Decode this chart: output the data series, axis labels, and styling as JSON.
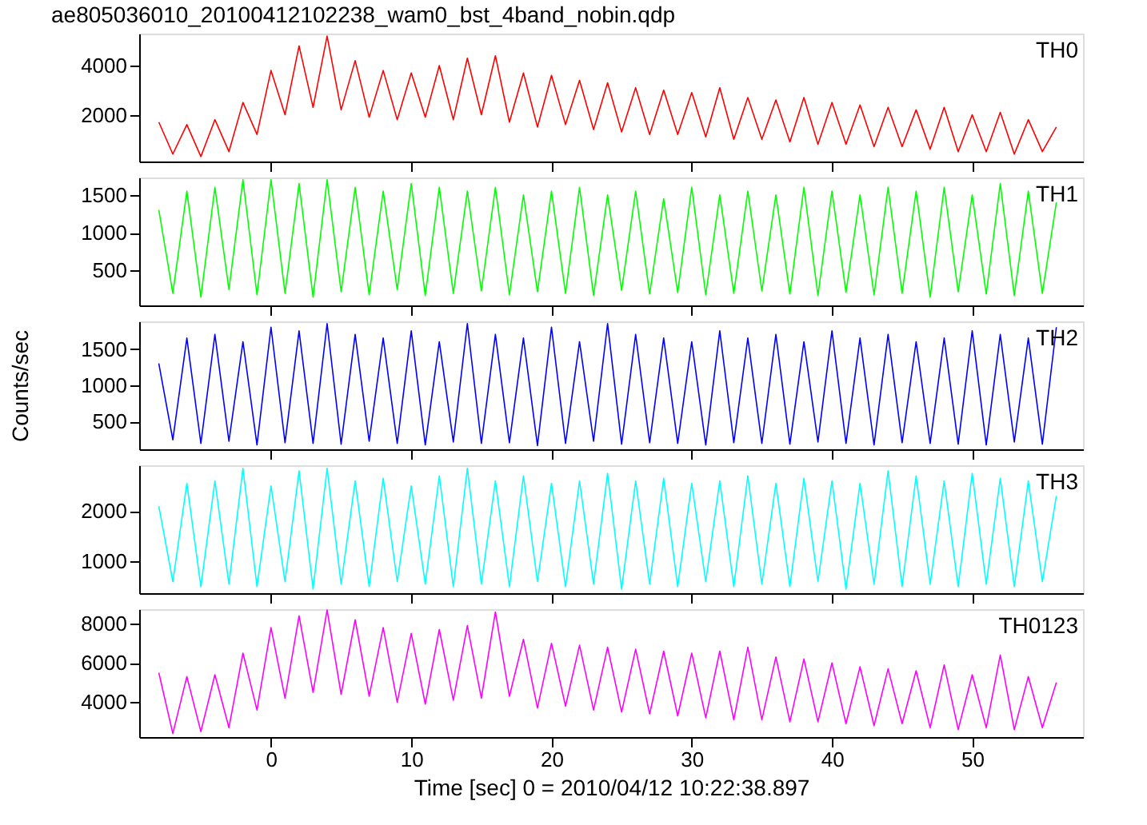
{
  "chart_data": [
    {
      "type": "line",
      "title": "ae805036010_20100412102238_wam0_bst_4band_nobin.qdp",
      "tick_labels": "y",
      "grid": false,
      "xlim": [
        -9.4,
        57.9
      ],
      "xticks": [
        0,
        10,
        20,
        30,
        40,
        50
      ],
      "ylim": [
        100,
        5300
      ],
      "yticks": [
        2000,
        4000
      ],
      "x": [
        -8,
        -7,
        -6,
        -5,
        -4,
        -3,
        -2,
        -1,
        0,
        1,
        2,
        3,
        4,
        5,
        6,
        7,
        8,
        9,
        10,
        11,
        12,
        13,
        14,
        15,
        16,
        17,
        18,
        19,
        20,
        21,
        22,
        23,
        24,
        25,
        26,
        27,
        28,
        29,
        30,
        31,
        32,
        33,
        34,
        35,
        36,
        37,
        38,
        39,
        40,
        41,
        42,
        43,
        44,
        45,
        46,
        47,
        48,
        49,
        50,
        51,
        52,
        53,
        54,
        55,
        56
      ],
      "series": [
        {
          "name": "TH0",
          "color": "#ff0000",
          "values": [
            1700,
            400,
            1600,
            300,
            1800,
            500,
            2500,
            1200,
            3800,
            2000,
            4800,
            2300,
            5200,
            2200,
            4200,
            1900,
            3800,
            1800,
            3700,
            1900,
            4000,
            1800,
            4300,
            2000,
            4400,
            1700,
            3700,
            1500,
            3600,
            1600,
            3400,
            1400,
            3300,
            1300,
            3100,
            1200,
            3000,
            1200,
            2900,
            1100,
            3100,
            1000,
            2700,
            1000,
            2600,
            900,
            2700,
            800,
            2500,
            800,
            2400,
            700,
            2300,
            700,
            2200,
            600,
            2300,
            500,
            2000,
            500,
            2100,
            400,
            1800,
            500,
            1500
          ]
        }
      ]
    },
    {
      "type": "line",
      "tick_labels": "y",
      "grid": false,
      "xlim": [
        -9.4,
        57.9
      ],
      "xticks": [
        0,
        10,
        20,
        30,
        40,
        50
      ],
      "ylim": [
        40,
        1730
      ],
      "yticks": [
        500,
        1000,
        1500
      ],
      "x": [
        -8,
        -7,
        -6,
        -5,
        -4,
        -3,
        -2,
        -1,
        0,
        1,
        2,
        3,
        4,
        5,
        6,
        7,
        8,
        9,
        10,
        11,
        12,
        13,
        14,
        15,
        16,
        17,
        18,
        19,
        20,
        21,
        22,
        23,
        24,
        25,
        26,
        27,
        28,
        29,
        30,
        31,
        32,
        33,
        34,
        35,
        36,
        37,
        38,
        39,
        40,
        41,
        42,
        43,
        44,
        45,
        46,
        47,
        48,
        49,
        50,
        51,
        52,
        53,
        54,
        55,
        56
      ],
      "series": [
        {
          "name": "TH1",
          "color": "#00ff00",
          "values": [
            1300,
            200,
            1550,
            150,
            1600,
            250,
            1700,
            180,
            1700,
            200,
            1650,
            150,
            1700,
            220,
            1600,
            180,
            1550,
            250,
            1650,
            170,
            1600,
            200,
            1550,
            230,
            1600,
            180,
            1500,
            220,
            1550,
            200,
            1600,
            170,
            1500,
            240,
            1550,
            190,
            1450,
            210,
            1600,
            180,
            1500,
            200,
            1550,
            230,
            1500,
            190,
            1600,
            170,
            1550,
            210,
            1500,
            180,
            1600,
            200,
            1550,
            150,
            1600,
            220,
            1500,
            190,
            1650,
            170,
            1550,
            200,
            1400
          ]
        }
      ]
    },
    {
      "type": "line",
      "tick_labels": "y",
      "grid": false,
      "xlim": [
        -9.4,
        57.9
      ],
      "xticks": [
        0,
        10,
        20,
        30,
        40,
        50
      ],
      "ylim": [
        120,
        1880
      ],
      "yticks": [
        500,
        1000,
        1500
      ],
      "ylabel": "Counts/sec",
      "x": [
        -8,
        -7,
        -6,
        -5,
        -4,
        -3,
        -2,
        -1,
        0,
        1,
        2,
        3,
        4,
        5,
        6,
        7,
        8,
        9,
        10,
        11,
        12,
        13,
        14,
        15,
        16,
        17,
        18,
        19,
        20,
        21,
        22,
        23,
        24,
        25,
        26,
        27,
        28,
        29,
        30,
        31,
        32,
        33,
        34,
        35,
        36,
        37,
        38,
        39,
        40,
        41,
        42,
        43,
        44,
        45,
        46,
        47,
        48,
        49,
        50,
        51,
        52,
        53,
        54,
        55,
        56
      ],
      "series": [
        {
          "name": "TH2",
          "color": "#0000ff",
          "values": [
            1300,
            250,
            1650,
            200,
            1700,
            230,
            1600,
            180,
            1800,
            210,
            1750,
            200,
            1850,
            190,
            1700,
            230,
            1650,
            200,
            1750,
            180,
            1600,
            220,
            1850,
            200,
            1700,
            210,
            1650,
            170,
            1800,
            200,
            1600,
            230,
            1850,
            190,
            1700,
            210,
            1650,
            200,
            1600,
            180,
            1750,
            210,
            1650,
            200,
            1700,
            190,
            1600,
            220,
            1750,
            200,
            1650,
            180,
            1700,
            210,
            1600,
            200,
            1650,
            190,
            1750,
            180,
            1700,
            220,
            1650,
            190,
            1800
          ]
        }
      ]
    },
    {
      "type": "line",
      "tick_labels": "y",
      "grid": false,
      "xlim": [
        -9.4,
        57.9
      ],
      "xticks": [
        0,
        10,
        20,
        30,
        40,
        50
      ],
      "ylim": [
        370,
        2910
      ],
      "yticks": [
        1000,
        2000
      ],
      "x": [
        -8,
        -7,
        -6,
        -5,
        -4,
        -3,
        -2,
        -1,
        0,
        1,
        2,
        3,
        4,
        5,
        6,
        7,
        8,
        9,
        10,
        11,
        12,
        13,
        14,
        15,
        16,
        17,
        18,
        19,
        20,
        21,
        22,
        23,
        24,
        25,
        26,
        27,
        28,
        29,
        30,
        31,
        32,
        33,
        34,
        35,
        36,
        37,
        38,
        39,
        40,
        41,
        42,
        43,
        44,
        45,
        46,
        47,
        48,
        49,
        50,
        51,
        52,
        53,
        54,
        55,
        56
      ],
      "series": [
        {
          "name": "TH3",
          "color": "#00ffff",
          "values": [
            2100,
            600,
            2550,
            500,
            2600,
            550,
            2850,
            500,
            2500,
            600,
            2800,
            450,
            2850,
            550,
            2600,
            500,
            2650,
            600,
            2500,
            550,
            2700,
            500,
            2850,
            550,
            2600,
            500,
            2700,
            600,
            2550,
            500,
            2600,
            550,
            2750,
            450,
            2600,
            550,
            2650,
            500,
            2550,
            600,
            2600,
            500,
            2700,
            550,
            2550,
            500,
            2650,
            600,
            2600,
            450,
            2550,
            550,
            2800,
            500,
            2700,
            550,
            2600,
            500,
            2750,
            550,
            2650,
            500,
            2600,
            600,
            2300
          ]
        }
      ]
    },
    {
      "type": "line",
      "tick_labels": true,
      "grid": false,
      "xlim": [
        -9.4,
        57.9
      ],
      "xticks": [
        0,
        10,
        20,
        30,
        40,
        50
      ],
      "ylim": [
        2220,
        8740
      ],
      "yticks": [
        4000,
        6000,
        8000
      ],
      "xlabel": "Time [sec] 0 = 2010/04/12 10:22:38.897",
      "x": [
        -8,
        -7,
        -6,
        -5,
        -4,
        -3,
        -2,
        -1,
        0,
        1,
        2,
        3,
        4,
        5,
        6,
        7,
        8,
        9,
        10,
        11,
        12,
        13,
        14,
        15,
        16,
        17,
        18,
        19,
        20,
        21,
        22,
        23,
        24,
        25,
        26,
        27,
        28,
        29,
        30,
        31,
        32,
        33,
        34,
        35,
        36,
        37,
        38,
        39,
        40,
        41,
        42,
        43,
        44,
        45,
        46,
        47,
        48,
        49,
        50,
        51,
        52,
        53,
        54,
        55,
        56
      ],
      "series": [
        {
          "name": "TH0123",
          "color": "#ff00ff",
          "values": [
            5500,
            2400,
            5300,
            2500,
            5400,
            2700,
            6500,
            3600,
            7800,
            4200,
            8400,
            4500,
            8700,
            4400,
            8200,
            4300,
            7800,
            4000,
            7500,
            3900,
            7700,
            4100,
            7900,
            4200,
            8600,
            4300,
            7200,
            3700,
            7000,
            3800,
            6900,
            3600,
            6800,
            3500,
            6700,
            3400,
            6600,
            3300,
            6500,
            3200,
            6600,
            3100,
            6800,
            3100,
            6300,
            3000,
            6200,
            3000,
            6000,
            2900,
            5800,
            2800,
            5700,
            2900,
            5600,
            2700,
            5900,
            2600,
            5400,
            2700,
            6400,
            2600,
            5300,
            2700,
            5000
          ]
        }
      ]
    }
  ]
}
